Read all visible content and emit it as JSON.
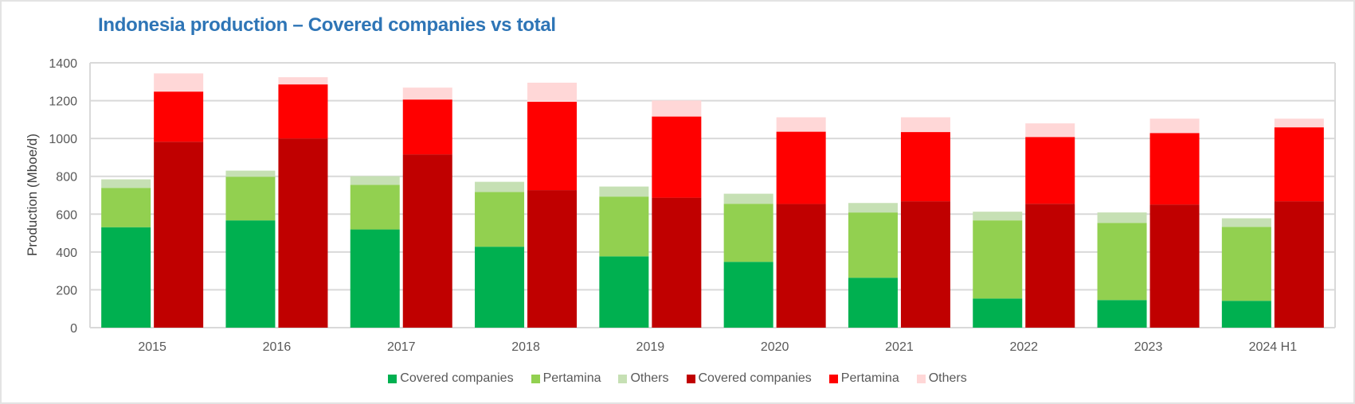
{
  "chart_data": {
    "type": "bar",
    "stacked": true,
    "grouped": true,
    "title": "Indonesia production – Covered companies vs total",
    "xlabel": "",
    "ylabel": "Production (Mboe/d)",
    "ylim": [
      0,
      1400
    ],
    "yticks": [
      0,
      200,
      400,
      600,
      800,
      1000,
      1200,
      1400
    ],
    "grid": true,
    "legend_position": "bottom",
    "categories": [
      "2015",
      "2016",
      "2017",
      "2018",
      "2019",
      "2020",
      "2021",
      "2022",
      "2023",
      "2024 H1"
    ],
    "groups": [
      {
        "name": "green-stack",
        "series": [
          {
            "name": "Covered companies",
            "color": "#00b050",
            "values": [
              531,
              567,
              519,
              428,
              377,
              348,
              264,
              154,
              146,
              142
            ]
          },
          {
            "name": "Pertamina",
            "color": "#92d050",
            "values": [
              208,
              231,
              236,
              289,
              316,
              307,
              345,
              413,
              408,
              391
            ]
          },
          {
            "name": "Others",
            "color": "#c6e0b4",
            "values": [
              45,
              32,
              46,
              54,
              53,
              53,
              50,
              46,
              55,
              45
            ]
          }
        ]
      },
      {
        "name": "red-stack",
        "series": [
          {
            "name": "Covered companies",
            "color": "#c00000",
            "values": [
              983,
              1000,
              916,
              727,
              687,
              654,
              668,
              655,
              651,
              668
            ]
          },
          {
            "name": "Pertamina",
            "color": "#ff0000",
            "values": [
              265,
              286,
              290,
              467,
              429,
              382,
              366,
              353,
              378,
              391
            ]
          },
          {
            "name": "Others",
            "color": "#ffd7d7",
            "values": [
              96,
              38,
              63,
              101,
              85,
              76,
              78,
              72,
              76,
              46
            ]
          }
        ]
      }
    ],
    "legend": [
      {
        "label": "Covered companies",
        "color": "#00b050"
      },
      {
        "label": "Pertamina",
        "color": "#92d050"
      },
      {
        "label": "Others",
        "color": "#c6e0b4"
      },
      {
        "label": "Covered companies",
        "color": "#c00000"
      },
      {
        "label": "Pertamina",
        "color": "#ff0000"
      },
      {
        "label": "Others",
        "color": "#ffd7d7"
      }
    ]
  }
}
